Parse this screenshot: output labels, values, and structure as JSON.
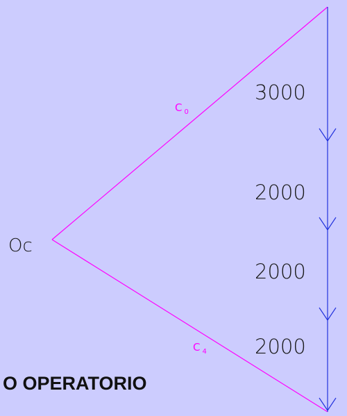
{
  "origin": {
    "label": "Oc"
  },
  "rays": [
    {
      "label": "C",
      "sub": "0"
    },
    {
      "label": "C",
      "sub": "4"
    }
  ],
  "segments": [
    "3000",
    "2000",
    "2000",
    "2000"
  ],
  "footer": "O OPERATORIO"
}
